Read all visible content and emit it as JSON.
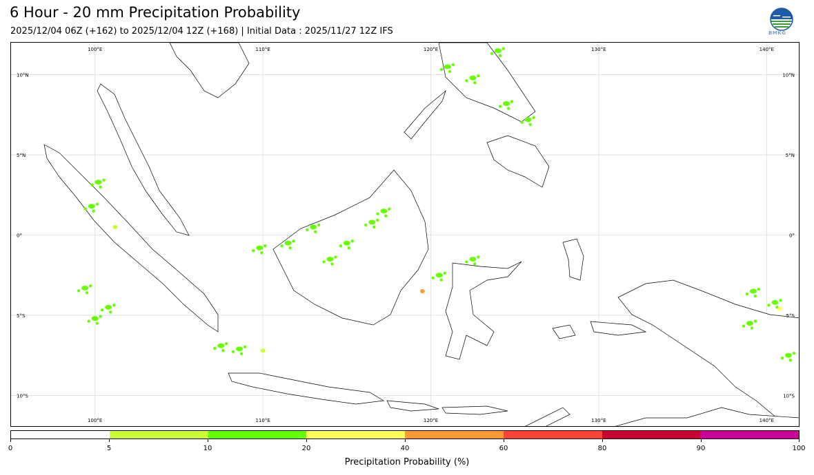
{
  "header": {
    "title": "6 Hour - 20 mm Precipitation Probability",
    "subtitle": "2025/12/04 06Z (+162) to 2025/12/04 12Z (+168) | Initial Data : 2025/11/27 12Z IFS",
    "logo_text": "BMKG"
  },
  "map": {
    "lon_range": [
      95,
      142
    ],
    "lat_range": [
      -12,
      12
    ],
    "grid": true,
    "lon_labels_top": [
      "100°E",
      "110°E",
      "120°E",
      "130°E",
      "140°E"
    ],
    "lon_labels_bottom": [
      "100°E",
      "110°E",
      "120°E",
      "130°E",
      "140°E"
    ],
    "lat_labels_left": [
      "10°N",
      "5°N",
      "0°",
      "5°S",
      "10°S"
    ],
    "lat_labels_right": [
      "10°N",
      "5°N",
      "0°",
      "5°S",
      "10°S"
    ],
    "lon_values": [
      100,
      110,
      120,
      130,
      140
    ],
    "lat_values": [
      10,
      5,
      0,
      -5,
      -10
    ],
    "colors": {
      "low": "#ccff33",
      "mid": "#66ff00",
      "high": "#ffff55",
      "higher": "#ff9933"
    },
    "precip_patches": [
      {
        "lon": 100.2,
        "lat": 3.3,
        "level": "mid"
      },
      {
        "lon": 99.8,
        "lat": 1.8,
        "level": "mid"
      },
      {
        "lon": 101.2,
        "lat": 0.5,
        "level": "low"
      },
      {
        "lon": 100.8,
        "lat": -4.5,
        "level": "mid"
      },
      {
        "lon": 100.0,
        "lat": -5.2,
        "level": "mid"
      },
      {
        "lon": 99.4,
        "lat": -3.3,
        "level": "mid"
      },
      {
        "lon": 109.8,
        "lat": -0.8,
        "level": "mid"
      },
      {
        "lon": 111.5,
        "lat": -0.5,
        "level": "mid"
      },
      {
        "lon": 113.0,
        "lat": 0.5,
        "level": "mid"
      },
      {
        "lon": 114.0,
        "lat": -1.5,
        "level": "mid"
      },
      {
        "lon": 115.0,
        "lat": -0.5,
        "level": "mid"
      },
      {
        "lon": 116.5,
        "lat": 0.8,
        "level": "mid"
      },
      {
        "lon": 117.2,
        "lat": 1.5,
        "level": "mid"
      },
      {
        "lon": 119.5,
        "lat": -3.5,
        "level": "higher"
      },
      {
        "lon": 120.5,
        "lat": -2.5,
        "level": "mid"
      },
      {
        "lon": 122.5,
        "lat": -1.5,
        "level": "mid"
      },
      {
        "lon": 107.5,
        "lat": -6.9,
        "level": "mid"
      },
      {
        "lon": 108.6,
        "lat": -7.1,
        "level": "mid"
      },
      {
        "lon": 110.0,
        "lat": -7.2,
        "level": "low"
      },
      {
        "lon": 121.0,
        "lat": 10.5,
        "level": "mid"
      },
      {
        "lon": 122.5,
        "lat": 9.8,
        "level": "mid"
      },
      {
        "lon": 124.5,
        "lat": 8.2,
        "level": "mid"
      },
      {
        "lon": 125.8,
        "lat": 7.2,
        "level": "mid"
      },
      {
        "lon": 124.0,
        "lat": 11.5,
        "level": "mid"
      },
      {
        "lon": 139.2,
        "lat": -3.5,
        "level": "mid"
      },
      {
        "lon": 140.5,
        "lat": -4.2,
        "level": "mid"
      },
      {
        "lon": 140.8,
        "lat": -4.6,
        "level": "high"
      },
      {
        "lon": 141.3,
        "lat": -7.5,
        "level": "mid"
      },
      {
        "lon": 139.0,
        "lat": -5.5,
        "level": "mid"
      }
    ]
  },
  "colorbar": {
    "label": "Precipitation Probability (%)",
    "ticks": [
      "0",
      "5",
      "10",
      "20",
      "40",
      "60",
      "80",
      "90",
      "100"
    ],
    "segment_colors": [
      "#ffffff",
      "#ccff33",
      "#66ff00",
      "#ffff55",
      "#ff9933",
      "#ff4433",
      "#cc0033",
      "#cc0099"
    ]
  }
}
